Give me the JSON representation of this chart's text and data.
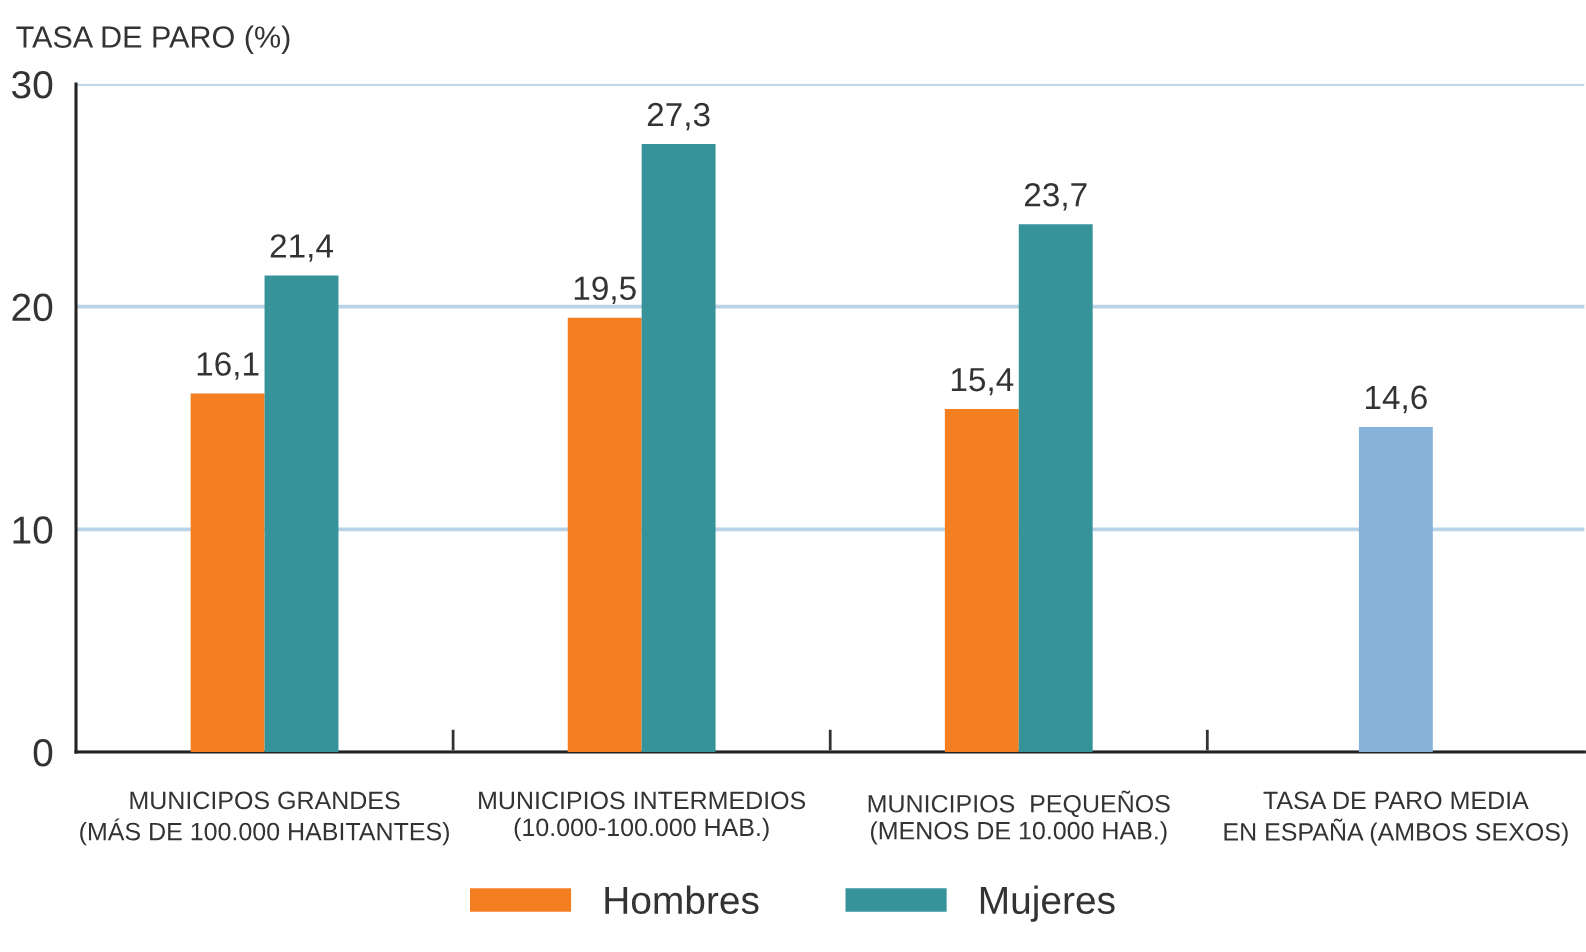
{
  "chart_data": {
    "type": "bar",
    "ylabel": "TASA DE PARO (%)",
    "categories": [
      "MUNICIPOS GRANDES\n(MÁS DE 100.000 HABITANTES)",
      "MUNICIPIOS INTERMEDIOS\n(10.000-100.000 HAB.)",
      "MUNICIPIOS  PEQUEÑOS\n(MENOS DE 10.000 HAB.)",
      "TASA DE PARO MEDIA\nEN ESPAÑA (AMBOS SEXOS)"
    ],
    "series": [
      {
        "name": "Hombres",
        "color": "#f47f20",
        "values": [
          16.1,
          19.5,
          15.4,
          null
        ],
        "value_labels": [
          "16,1",
          "19,5",
          "15,4",
          null
        ]
      },
      {
        "name": "Mujeres",
        "color": "#36939a",
        "values": [
          21.4,
          27.3,
          23.7,
          null
        ],
        "value_labels": [
          "21,4",
          "27,3",
          "23,7",
          null
        ]
      },
      {
        "color": "#87b2d9",
        "values": [
          null,
          null,
          null,
          14.6
        ],
        "value_labels": [
          null,
          null,
          null,
          "14,6"
        ]
      }
    ],
    "ylim": [
      0,
      30
    ],
    "yticks": [
      0,
      10,
      20,
      30
    ],
    "grid": "y",
    "legend": "bottom"
  }
}
